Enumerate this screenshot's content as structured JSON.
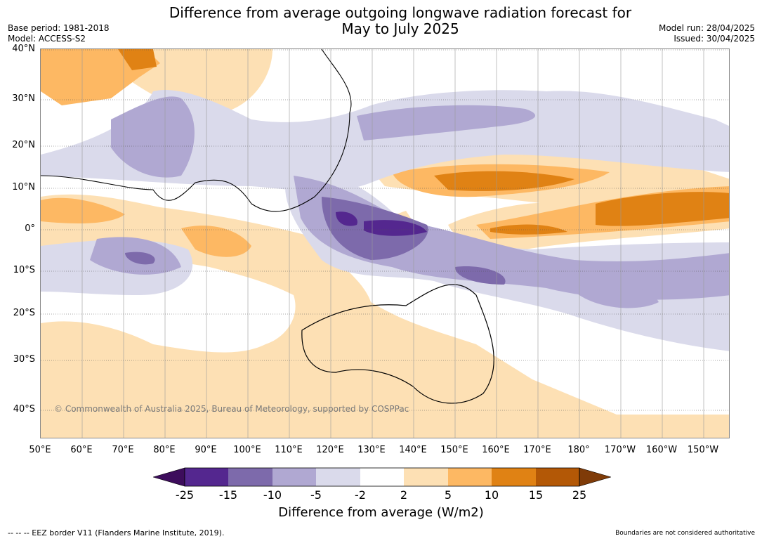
{
  "title": {
    "line1": "Difference from average outgoing longwave radiation forecast for",
    "line2": "May to July 2025"
  },
  "meta_left": {
    "base_period": "Base period: 1981-2018",
    "model": "Model: ACCESS-S2"
  },
  "meta_right": {
    "model_run": "Model run: 28/04/2025",
    "issued": "Issued: 30/04/2025"
  },
  "lat_labels": [
    "40°N",
    "30°N",
    "20°N",
    "10°N",
    "0°",
    "10°S",
    "20°S",
    "30°S",
    "40°S"
  ],
  "lon_labels": [
    "50°E",
    "60°E",
    "70°E",
    "80°E",
    "90°E",
    "100°E",
    "110°E",
    "120°E",
    "130°E",
    "140°E",
    "150°E",
    "160°E",
    "170°E",
    "180°",
    "170°W",
    "160°W",
    "150°W"
  ],
  "copyright": "© Commonwealth of Australia 2025, Bureau of Meteorology, supported by COSPPac",
  "colorbar": {
    "ticks": [
      "-25",
      "-15",
      "-10",
      "-5",
      "-2",
      "2",
      "5",
      "10",
      "15",
      "25"
    ],
    "colors": [
      "#3d0d5c",
      "#54278f",
      "#7d6aab",
      "#b0a8d2",
      "#dadaeb",
      "#ffffff",
      "#fde0b4",
      "#fdb863",
      "#e08214",
      "#b35806",
      "#7f3b08"
    ],
    "title": "Difference from average (W/m2)"
  },
  "footer": {
    "eez": "--  --  -- EEZ border V11 (Flanders Marine Institute, 2019).",
    "disclaimer": "Boundaries are not considered authoritative"
  }
}
